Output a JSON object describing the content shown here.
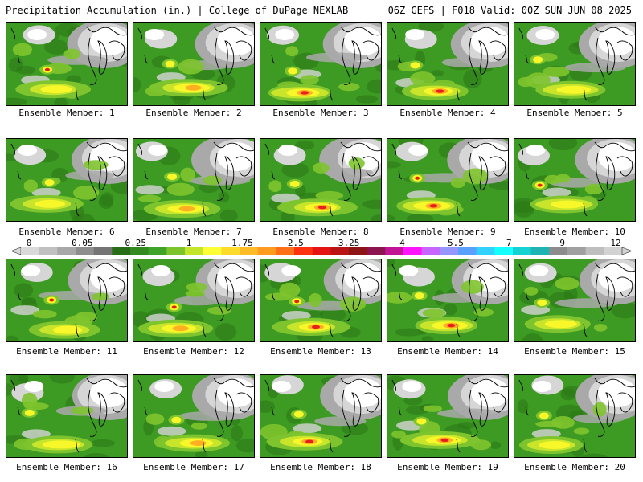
{
  "header": {
    "left": "Precipitation Accumulation (in.) | College of DuPage NEXLAB",
    "right": "06Z GEFS | F018 Valid: 00Z SUN JUN 08 2025"
  },
  "legend": {
    "ticks": [
      "0",
      "0.05",
      "0.25",
      "1",
      "1.75",
      "2.5",
      "3.25",
      "4",
      "5.5",
      "7",
      "9",
      "12"
    ],
    "colors": [
      "#d9d9d9",
      "#c0c0c0",
      "#a8a8a8",
      "#8e8e8e",
      "#747474",
      "#286e18",
      "#348a20",
      "#3fa327",
      "#7cc42c",
      "#c3e52c",
      "#ffff36",
      "#ffdc2c",
      "#ffbc26",
      "#ff9c20",
      "#ff7018",
      "#ff3210",
      "#e61414",
      "#bb1414",
      "#8c1414",
      "#8c1450",
      "#c41496",
      "#ff14ff",
      "#c864ff",
      "#9696ff",
      "#5aa0ff",
      "#32d2ff",
      "#14ffff",
      "#14d2d2",
      "#1eb4b4",
      "#8c8c8c",
      "#a0a0a0",
      "#bebebe",
      "#d2d2d2"
    ]
  },
  "panel_colors": {
    "green": "#3d9a22",
    "dark_green": "#2b7a18",
    "light_green": "#7ec42e",
    "white": "#ffffff",
    "light_gray": "#d6d6d6",
    "gray": "#a9a9a9",
    "yellow": "#f7f72a",
    "yellow_green": "#c8e52c",
    "orange": "#ffb020",
    "red": "#e81e1e"
  },
  "members": [
    {
      "label": "Ensemble Member: 1"
    },
    {
      "label": "Ensemble Member: 2"
    },
    {
      "label": "Ensemble Member: 3"
    },
    {
      "label": "Ensemble Member: 4"
    },
    {
      "label": "Ensemble Member: 5"
    },
    {
      "label": "Ensemble Member: 6"
    },
    {
      "label": "Ensemble Member: 7"
    },
    {
      "label": "Ensemble Member: 8"
    },
    {
      "label": "Ensemble Member: 9"
    },
    {
      "label": "Ensemble Member: 10"
    },
    {
      "label": "Ensemble Member: 11"
    },
    {
      "label": "Ensemble Member: 12"
    },
    {
      "label": "Ensemble Member: 13"
    },
    {
      "label": "Ensemble Member: 14"
    },
    {
      "label": "Ensemble Member: 15"
    },
    {
      "label": "Ensemble Member: 16"
    },
    {
      "label": "Ensemble Member: 17"
    },
    {
      "label": "Ensemble Member: 18"
    },
    {
      "label": "Ensemble Member: 19"
    },
    {
      "label": "Ensemble Member: 20"
    }
  ]
}
